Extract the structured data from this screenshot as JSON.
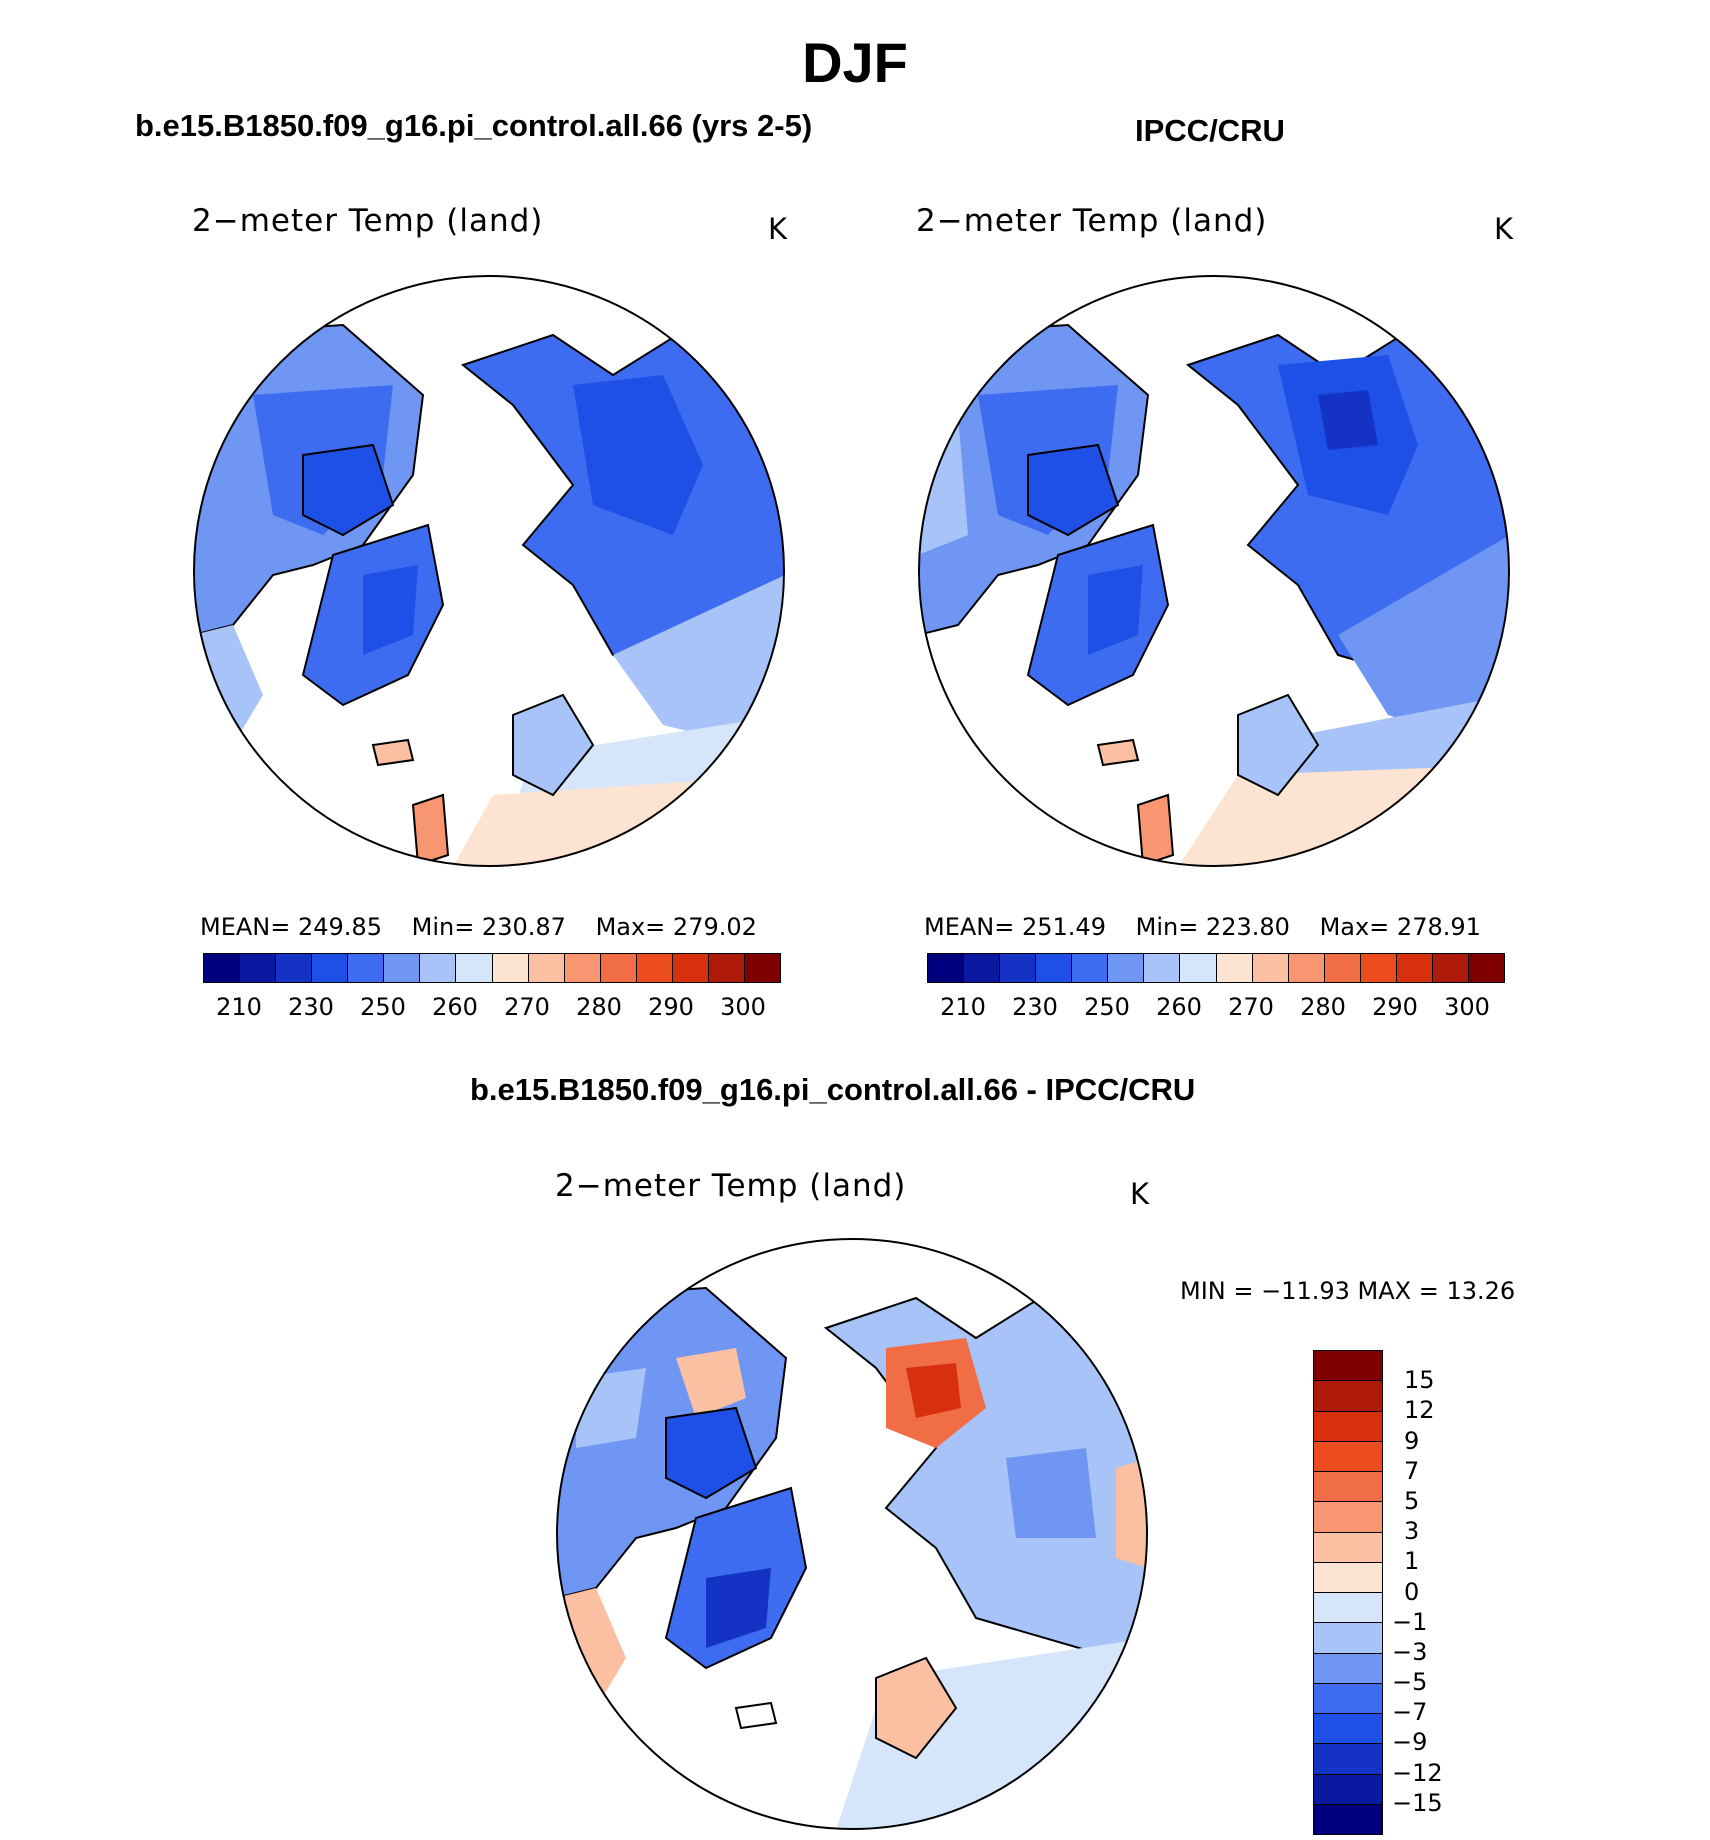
{
  "main_title": "DJF",
  "panels": [
    {
      "case_title": "b.e15.B1850.f09_g16.pi_control.all.66 (yrs 2-5)",
      "variable": "2−meter Temp (land)",
      "units": "K",
      "mean_label": "MEAN= 249.85",
      "min_label": "Min= 230.87",
      "max_label": "Max= 279.02"
    },
    {
      "case_title": "IPCC/CRU",
      "variable": "2−meter Temp (land)",
      "units": "K",
      "mean_label": "MEAN= 251.49",
      "min_label": "Min= 223.80",
      "max_label": "Max= 278.91"
    }
  ],
  "diff_panel": {
    "case_title": "b.e15.B1850.f09_g16.pi_control.all.66 - IPCC/CRU",
    "variable": "2−meter Temp (land)",
    "units": "K",
    "minmax_label": "MIN = −11.93 MAX =   13.26"
  },
  "colorbar": {
    "colors": [
      "#00007f",
      "#0a1aa0",
      "#1433c4",
      "#1e4fe6",
      "#3e6cf0",
      "#6f96f3",
      "#a8c3f7",
      "#d5e6fb",
      "#fde3d1",
      "#fbc0a2",
      "#f79670",
      "#f06d45",
      "#ed4c1f",
      "#d7300f",
      "#ad1a0a",
      "#7f0000"
    ],
    "tick_labels": [
      "210",
      "230",
      "250",
      "260",
      "270",
      "280",
      "290",
      "300"
    ]
  },
  "diff_colorbar": {
    "colors": [
      "#7f0000",
      "#ad1a0a",
      "#d7300f",
      "#ed4c1f",
      "#f06d45",
      "#f79670",
      "#fbc0a2",
      "#fde3d1",
      "#d5e6fb",
      "#a8c3f7",
      "#6f96f3",
      "#3e6cf0",
      "#1e4fe6",
      "#1433c4",
      "#0a1aa0",
      "#00007f"
    ],
    "tick_labels": [
      "15",
      "12",
      "9",
      "7",
      "5",
      "3",
      "1",
      "0",
      "−1",
      "−3",
      "−5",
      "−7",
      "−9",
      "−12",
      "−15"
    ]
  },
  "map_features": {
    "land_regions": [
      "north-america",
      "siberia",
      "europe",
      "greenland",
      "scandinavia",
      "iceland",
      "british-isles",
      "canadian-archipelago"
    ]
  }
}
